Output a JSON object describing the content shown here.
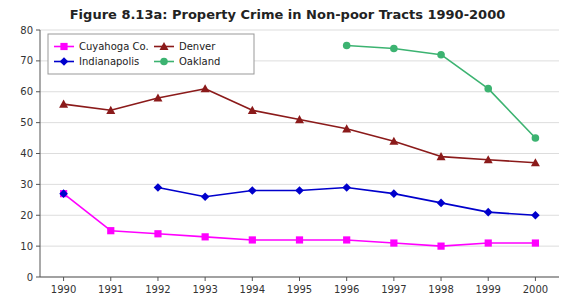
{
  "chart_data": {
    "type": "line",
    "title": "Figure 8.13a: Property Crime in Non-poor Tracts 1990-2000",
    "x": [
      1990,
      1991,
      1992,
      1993,
      1994,
      1995,
      1996,
      1997,
      1998,
      1999,
      2000
    ],
    "series": [
      {
        "name": "Cuyahoga Co.",
        "color": "#FF00FF",
        "marker": "square",
        "values": [
          27,
          15,
          14,
          13,
          12,
          12,
          12,
          11,
          10,
          11,
          11
        ]
      },
      {
        "name": "Denver",
        "color": "#8B1A1A",
        "marker": "triangle",
        "values": [
          56,
          54,
          58,
          61,
          54,
          51,
          48,
          44,
          39,
          38,
          37
        ]
      },
      {
        "name": "Indianapolis",
        "color": "#0000CC",
        "marker": "diamond",
        "values": [
          27,
          null,
          29,
          26,
          28,
          28,
          29,
          27,
          24,
          21,
          20
        ]
      },
      {
        "name": "Oakland",
        "color": "#3CB371",
        "marker": "circle",
        "values": [
          null,
          null,
          null,
          null,
          null,
          null,
          75,
          74,
          72,
          61,
          45
        ]
      }
    ],
    "xlim": [
      1989.5,
      2000.5
    ],
    "xticks": [
      1990,
      1991,
      1992,
      1993,
      1994,
      1995,
      1996,
      1997,
      1998,
      1999,
      2000
    ],
    "ylim": [
      0,
      80
    ],
    "yticks": [
      0,
      10,
      20,
      30,
      40,
      50,
      60,
      70,
      80
    ],
    "grid": true,
    "legend": "upper left"
  }
}
